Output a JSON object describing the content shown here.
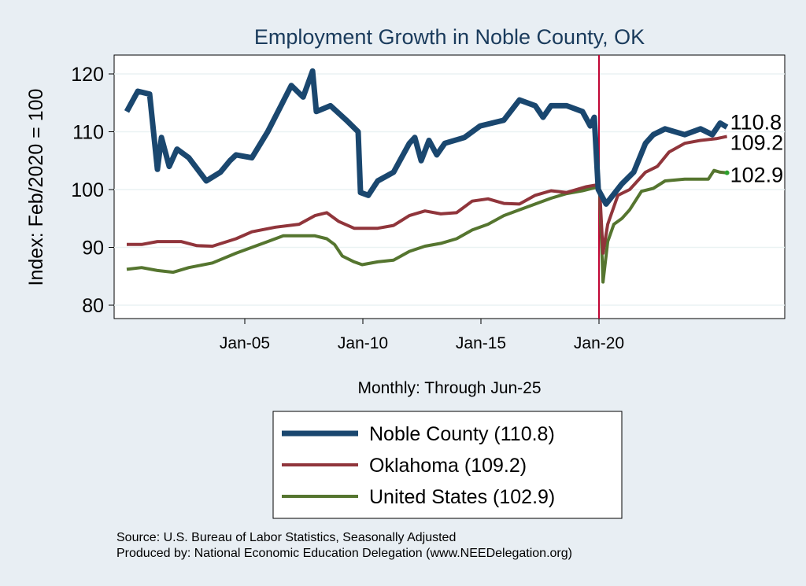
{
  "chart_data": {
    "type": "line",
    "title": "Employment Growth in Noble  County, OK",
    "xlabel": "Monthly: Through Jun-25",
    "ylabel": "Index: Feb/2020 = 100",
    "ylim": [
      78,
      123
    ],
    "xlim": [
      1999.5,
      2028
    ],
    "yticks": [
      80,
      90,
      100,
      110,
      120
    ],
    "xticks": [
      {
        "value": 2005,
        "label": "Jan-05"
      },
      {
        "value": 2010,
        "label": "Jan-10"
      },
      {
        "value": 2015,
        "label": "Jan-15"
      },
      {
        "value": 2020,
        "label": "Jan-20"
      }
    ],
    "reference_line_x": 2020.0,
    "grid": true,
    "legend_placement": "bottom",
    "series": [
      {
        "name": "Noble  County (110.8)",
        "color": "#1a476f",
        "end_label": "110.8",
        "points": [
          [
            2000,
            113.5
          ],
          [
            2000.47,
            117
          ],
          [
            2000.97,
            116.5
          ],
          [
            2001.3,
            103.5
          ],
          [
            2001.47,
            109
          ],
          [
            2001.8,
            104
          ],
          [
            2002.13,
            107
          ],
          [
            2002.63,
            105.5
          ],
          [
            2003.37,
            101.5
          ],
          [
            2003.97,
            103
          ],
          [
            2004.37,
            105
          ],
          [
            2004.63,
            106
          ],
          [
            2005.3,
            105.5
          ],
          [
            2005.97,
            110
          ],
          [
            2006.47,
            114
          ],
          [
            2006.97,
            118
          ],
          [
            2007.47,
            116
          ],
          [
            2007.87,
            120.5
          ],
          [
            2008.03,
            113.5
          ],
          [
            2008.63,
            114.5
          ],
          [
            2009.3,
            112
          ],
          [
            2009.8,
            110
          ],
          [
            2009.9,
            99.5
          ],
          [
            2010.23,
            99
          ],
          [
            2010.63,
            101.5
          ],
          [
            2011.3,
            103
          ],
          [
            2011.97,
            108
          ],
          [
            2012.2,
            109
          ],
          [
            2012.47,
            105
          ],
          [
            2012.8,
            108.5
          ],
          [
            2013.13,
            106
          ],
          [
            2013.47,
            108
          ],
          [
            2014.3,
            109
          ],
          [
            2014.97,
            111
          ],
          [
            2015.97,
            112
          ],
          [
            2016.63,
            115.5
          ],
          [
            2017.3,
            114.5
          ],
          [
            2017.63,
            112.5
          ],
          [
            2017.97,
            114.5
          ],
          [
            2018.63,
            114.5
          ],
          [
            2019.3,
            113.5
          ],
          [
            2019.63,
            111
          ],
          [
            2019.8,
            112.5
          ],
          [
            2019.97,
            100
          ],
          [
            2020.3,
            97.5
          ],
          [
            2020.97,
            101
          ],
          [
            2021.47,
            103
          ],
          [
            2021.97,
            108
          ],
          [
            2022.3,
            109.5
          ],
          [
            2022.8,
            110.5
          ],
          [
            2023.63,
            109.5
          ],
          [
            2024.3,
            110.5
          ],
          [
            2024.8,
            109.5
          ],
          [
            2025.13,
            111.5
          ],
          [
            2025.42,
            110.8
          ]
        ]
      },
      {
        "name": "Oklahoma (109.2)",
        "color": "#90353b",
        "end_label": "109.2",
        "points": [
          [
            2000,
            90.5
          ],
          [
            2000.63,
            90.5
          ],
          [
            2001.3,
            91
          ],
          [
            2002.3,
            91
          ],
          [
            2002.97,
            90.3
          ],
          [
            2003.63,
            90.2
          ],
          [
            2004.63,
            91.5
          ],
          [
            2005.3,
            92.7
          ],
          [
            2006.3,
            93.5
          ],
          [
            2007.3,
            94
          ],
          [
            2007.97,
            95.5
          ],
          [
            2008.47,
            96
          ],
          [
            2008.97,
            94.5
          ],
          [
            2009.63,
            93.3
          ],
          [
            2010.63,
            93.3
          ],
          [
            2011.3,
            93.8
          ],
          [
            2011.97,
            95.5
          ],
          [
            2012.63,
            96.3
          ],
          [
            2013.3,
            95.8
          ],
          [
            2013.97,
            96
          ],
          [
            2014.63,
            98
          ],
          [
            2015.3,
            98.4
          ],
          [
            2015.97,
            97.6
          ],
          [
            2016.63,
            97.5
          ],
          [
            2017.3,
            99
          ],
          [
            2017.97,
            99.8
          ],
          [
            2018.63,
            99.5
          ],
          [
            2019.47,
            100.5
          ],
          [
            2019.9,
            100.8
          ],
          [
            2020.03,
            100
          ],
          [
            2020.17,
            89
          ],
          [
            2020.37,
            94
          ],
          [
            2020.8,
            99
          ],
          [
            2021.3,
            100
          ],
          [
            2021.97,
            103
          ],
          [
            2022.47,
            104
          ],
          [
            2022.97,
            106.5
          ],
          [
            2023.63,
            108
          ],
          [
            2024.3,
            108.5
          ],
          [
            2024.97,
            108.8
          ],
          [
            2025.42,
            109.2
          ]
        ]
      },
      {
        "name": "United States (102.9)",
        "color": "#55752f",
        "end_label": "102.9",
        "points": [
          [
            2000,
            86.2
          ],
          [
            2000.63,
            86.5
          ],
          [
            2001.3,
            86
          ],
          [
            2001.97,
            85.7
          ],
          [
            2002.63,
            86.5
          ],
          [
            2003.63,
            87.3
          ],
          [
            2004.63,
            89
          ],
          [
            2005.3,
            90
          ],
          [
            2005.97,
            91
          ],
          [
            2006.63,
            92
          ],
          [
            2007.3,
            92
          ],
          [
            2007.97,
            92
          ],
          [
            2008.47,
            91.5
          ],
          [
            2008.8,
            90.5
          ],
          [
            2009.13,
            88.5
          ],
          [
            2009.63,
            87.5
          ],
          [
            2009.97,
            87
          ],
          [
            2010.63,
            87.5
          ],
          [
            2011.3,
            87.8
          ],
          [
            2011.97,
            89.3
          ],
          [
            2012.63,
            90.2
          ],
          [
            2013.3,
            90.7
          ],
          [
            2013.97,
            91.5
          ],
          [
            2014.63,
            93
          ],
          [
            2015.3,
            94
          ],
          [
            2015.97,
            95.5
          ],
          [
            2016.63,
            96.5
          ],
          [
            2017.3,
            97.5
          ],
          [
            2017.97,
            98.5
          ],
          [
            2018.63,
            99.3
          ],
          [
            2019.3,
            99.8
          ],
          [
            2019.9,
            100.4
          ],
          [
            2020.03,
            99.5
          ],
          [
            2020.17,
            84
          ],
          [
            2020.37,
            91
          ],
          [
            2020.63,
            94
          ],
          [
            2020.97,
            95
          ],
          [
            2021.3,
            96.5
          ],
          [
            2021.8,
            99.7
          ],
          [
            2022.3,
            100.2
          ],
          [
            2022.8,
            101.5
          ],
          [
            2023.63,
            101.8
          ],
          [
            2024.63,
            101.8
          ],
          [
            2024.87,
            103.3
          ],
          [
            2025.13,
            103
          ],
          [
            2025.42,
            102.9
          ]
        ]
      }
    ]
  },
  "footer": {
    "source": "Source: U.S. Bureau of Labor Statistics, Seasonally Adjusted",
    "produced": "Produced by: National Economic Education Delegation (www.NEEDelegation.org)"
  }
}
